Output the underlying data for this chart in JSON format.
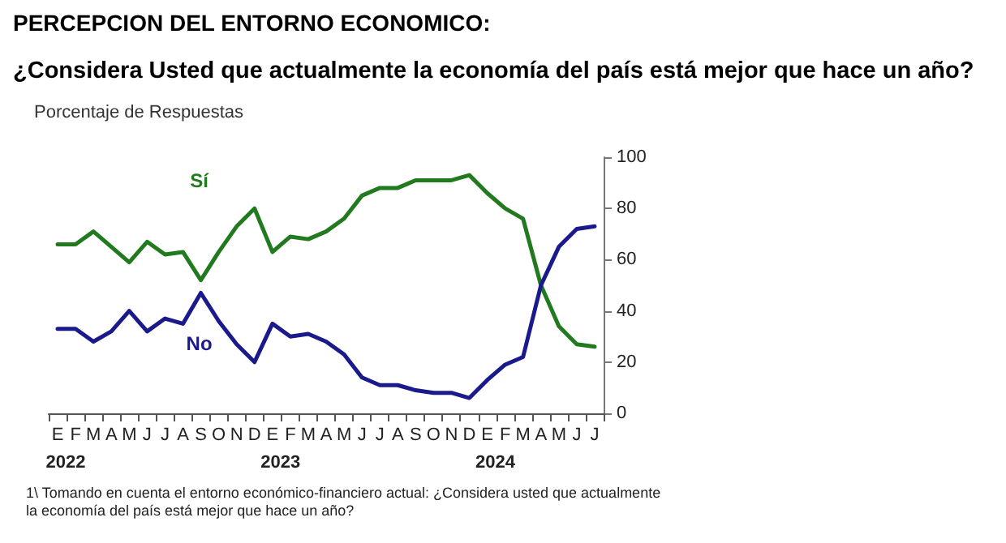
{
  "chart_data": {
    "type": "line",
    "title": "PERCEPCION DEL ENTORNO ECONOMICO:",
    "subtitle": "¿Considera Usted que actualmente la economía del país está mejor que hace un año?",
    "ylabel": "Porcentaje de Respuestas",
    "categories": [
      "E",
      "F",
      "M",
      "A",
      "M",
      "J",
      "J",
      "A",
      "S",
      "O",
      "N",
      "D",
      "E",
      "F",
      "M",
      "A",
      "M",
      "J",
      "J",
      "A",
      "S",
      "O",
      "N",
      "D",
      "E",
      "F",
      "M",
      "A",
      "M",
      "J",
      "J"
    ],
    "series": [
      {
        "name": "Sí",
        "color": "#217a1e",
        "values": [
          66,
          66,
          71,
          65,
          59,
          67,
          62,
          63,
          52,
          63,
          73,
          80,
          63,
          69,
          68,
          71,
          76,
          85,
          88,
          88,
          91,
          91,
          91,
          93,
          86,
          80,
          76,
          50,
          34,
          27,
          26
        ]
      },
      {
        "name": "No",
        "color": "#1a1a8c",
        "values": [
          33,
          33,
          28,
          32,
          40,
          32,
          37,
          35,
          47,
          36,
          27,
          20,
          35,
          30,
          31,
          28,
          23,
          14,
          11,
          11,
          9,
          8,
          8,
          6,
          13,
          19,
          22,
          50,
          65,
          72,
          73
        ]
      }
    ],
    "ylim": [
      0,
      100
    ],
    "yticks": [
      0,
      20,
      40,
      60,
      80,
      100
    ],
    "grid": false,
    "legend": false,
    "marker": "none",
    "line_style": "solid",
    "annotations": [
      "2022",
      "2023",
      "2024",
      "1\\ Tomando en cuenta el entorno económico-financiero actual: ¿Considera usted que actualmente la economía del país está mejor que hace un año?"
    ]
  }
}
